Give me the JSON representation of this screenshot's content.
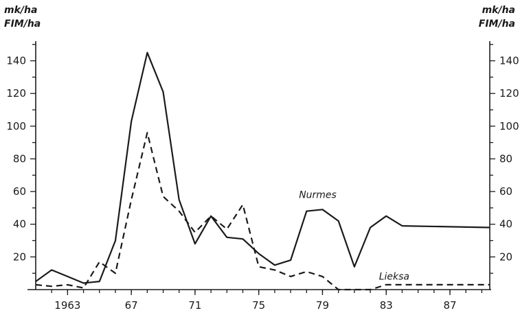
{
  "chart_data": {
    "type": "line",
    "title": "",
    "xlabel": "",
    "ylabel": "",
    "units_left": [
      "mk/ha",
      "FIM/ha"
    ],
    "units_right": [
      "mk/ha",
      "FIM/ha"
    ],
    "xlim": [
      1961,
      1989.5
    ],
    "ylim": [
      0,
      152
    ],
    "x_tick_labels": [
      {
        "x": 1963,
        "label": "1963"
      },
      {
        "x": 1967,
        "label": "67"
      },
      {
        "x": 1971,
        "label": "71"
      },
      {
        "x": 1975,
        "label": "75"
      },
      {
        "x": 1979,
        "label": "79"
      },
      {
        "x": 1983,
        "label": "83"
      },
      {
        "x": 1987,
        "label": "87"
      }
    ],
    "x_minor_ticks": [
      1962,
      1963,
      1964,
      1965,
      1966,
      1967,
      1968,
      1969,
      1970,
      1971,
      1972,
      1973,
      1974,
      1975,
      1976,
      1977,
      1978,
      1979,
      1980,
      1981,
      1982,
      1983,
      1984,
      1985,
      1986,
      1987,
      1988,
      1989
    ],
    "y_ticks": [
      20,
      40,
      60,
      80,
      100,
      120,
      140
    ],
    "y_minor_ticks": [
      10,
      30,
      50,
      70,
      90,
      110,
      130,
      150
    ],
    "grid": false,
    "series": [
      {
        "name": "Nurmes",
        "style": "solid",
        "x": [
          1961,
          1962,
          1963,
          1964,
          1965,
          1966,
          1967,
          1968,
          1969,
          1970,
          1971,
          1972,
          1973,
          1974,
          1975,
          1976,
          1977,
          1978,
          1979,
          1980,
          1981,
          1982,
          1983,
          1984,
          1989.5
        ],
        "values": [
          5,
          12,
          8,
          4,
          5,
          30,
          103,
          145,
          121,
          55,
          28,
          45,
          32,
          31,
          22,
          15,
          18,
          48,
          49,
          42,
          14,
          38,
          45,
          39,
          38
        ]
      },
      {
        "name": "Lieksa",
        "style": "dashed",
        "x": [
          1961,
          1962,
          1963,
          1964,
          1965,
          1966,
          1967,
          1968,
          1969,
          1970,
          1971,
          1972,
          1973,
          1974,
          1975,
          1976,
          1977,
          1978,
          1979,
          1980,
          1982,
          1983,
          1984,
          1989.5
        ],
        "values": [
          3,
          2,
          3,
          1,
          17,
          10,
          55,
          96,
          57,
          48,
          35,
          45,
          37,
          52,
          14,
          12,
          8,
          11,
          8,
          0,
          0,
          3,
          3,
          3
        ]
      }
    ],
    "colors": {
      "line": "#1a1a1a"
    }
  }
}
